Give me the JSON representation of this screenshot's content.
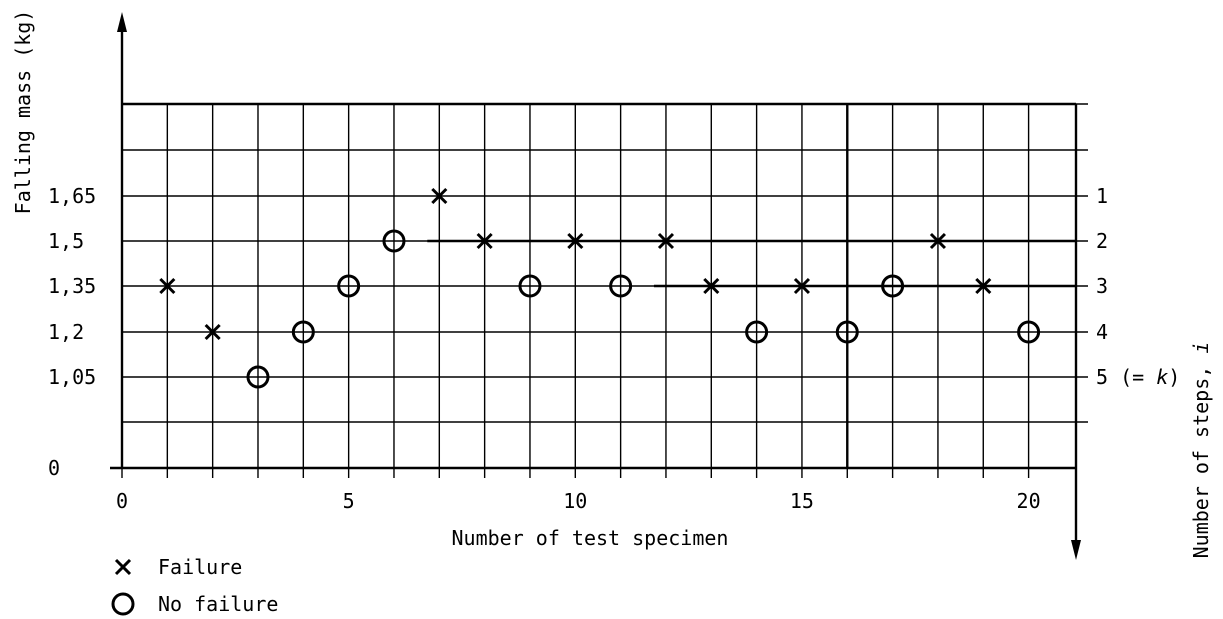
{
  "chart_data": {
    "type": "scatter",
    "ylabel": "Falling mass (kg)",
    "xlabel": "Number of test specimen",
    "y2label": "Number of steps,",
    "y2label_var": "i",
    "x_ticks": [
      "0",
      "5",
      "10",
      "15",
      "20"
    ],
    "y_ticks": [
      {
        "value": 0,
        "label": "0"
      },
      {
        "value": 1.05,
        "label": "1,05"
      },
      {
        "value": 1.2,
        "label": "1,2"
      },
      {
        "value": 1.35,
        "label": "1,35"
      },
      {
        "value": 1.5,
        "label": "1,5"
      },
      {
        "value": 1.65,
        "label": "1,65"
      }
    ],
    "step_labels": [
      {
        "value": 1.65,
        "label": "1"
      },
      {
        "value": 1.5,
        "label": "2"
      },
      {
        "value": 1.35,
        "label": "3"
      },
      {
        "value": 1.2,
        "label": "4"
      },
      {
        "value": 1.05,
        "label": "5 (= ",
        "var": "k",
        "suffix": ")"
      }
    ],
    "xlim": [
      0,
      21
    ],
    "grid": true,
    "legend": {
      "placement": "bottom-left",
      "entries": [
        {
          "key": "failure",
          "marker": "x",
          "label": "Failure"
        },
        {
          "key": "no_failure",
          "marker": "o",
          "label": "No failure"
        }
      ]
    },
    "series": [
      {
        "key": "failure",
        "points": [
          {
            "x": 1,
            "y": 1.35
          },
          {
            "x": 2,
            "y": 1.2
          },
          {
            "x": 7,
            "y": 1.65
          },
          {
            "x": 8,
            "y": 1.5
          },
          {
            "x": 10,
            "y": 1.5
          },
          {
            "x": 12,
            "y": 1.5
          },
          {
            "x": 13,
            "y": 1.35
          },
          {
            "x": 15,
            "y": 1.35
          },
          {
            "x": 18,
            "y": 1.5
          },
          {
            "x": 19,
            "y": 1.35
          }
        ]
      },
      {
        "key": "no_failure",
        "points": [
          {
            "x": 3,
            "y": 1.05
          },
          {
            "x": 4,
            "y": 1.2
          },
          {
            "x": 5,
            "y": 1.35
          },
          {
            "x": 6,
            "y": 1.5
          },
          {
            "x": 9,
            "y": 1.35
          },
          {
            "x": 11,
            "y": 1.35
          },
          {
            "x": 14,
            "y": 1.2
          },
          {
            "x": 16,
            "y": 1.2
          },
          {
            "x": 17,
            "y": 1.35
          },
          {
            "x": 20,
            "y": 1.2
          }
        ]
      }
    ]
  }
}
